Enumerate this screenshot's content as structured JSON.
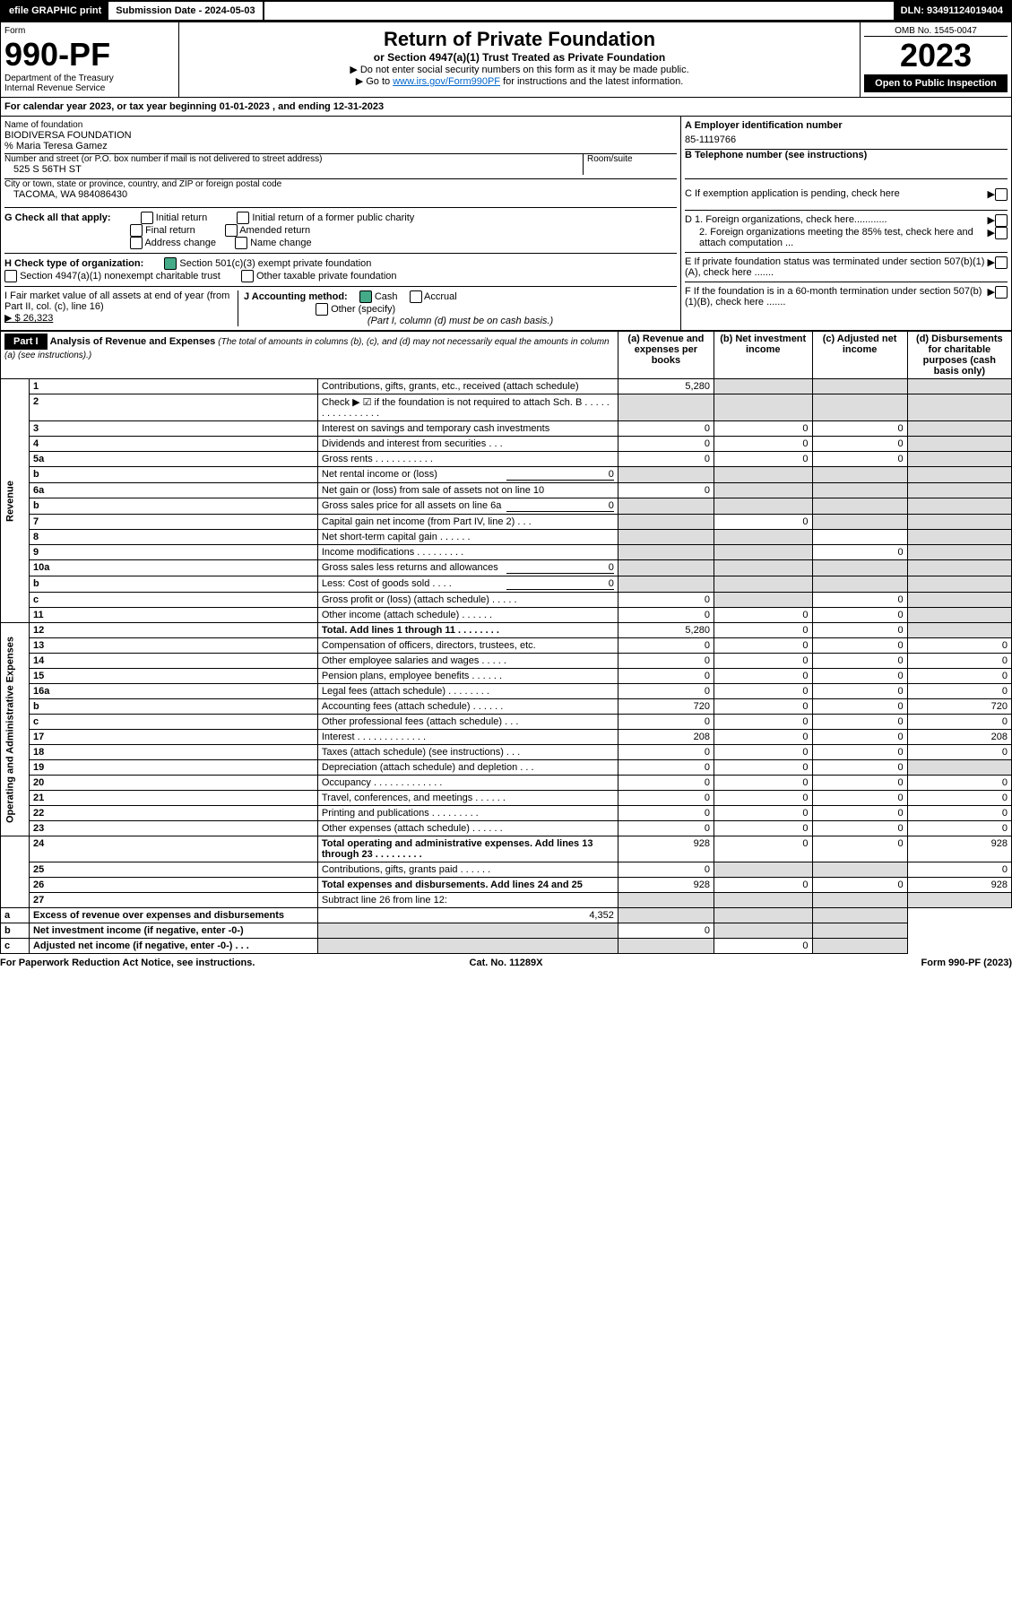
{
  "topbar": {
    "efile": "efile GRAPHIC print",
    "subdate_label": "Submission Date - 2024-05-03",
    "dln": "DLN: 93491124019404"
  },
  "hdr": {
    "form": "Form",
    "formno": "990-PF",
    "dept": "Department of the Treasury",
    "irs": "Internal Revenue Service",
    "title": "Return of Private Foundation",
    "sub": "or Section 4947(a)(1) Trust Treated as Private Foundation",
    "b1": "▶ Do not enter social security numbers on this form as it may be made public.",
    "b2": "▶ Go to ",
    "b2link": "www.irs.gov/Form990PF",
    "b2end": " for instructions and the latest information.",
    "omb": "OMB No. 1545-0047",
    "year": "2023",
    "open": "Open to Public Inspection"
  },
  "cal": "For calendar year 2023, or tax year beginning 01-01-2023          , and ending 12-31-2023",
  "name": {
    "label": "Name of foundation",
    "foundation": "BIODIVERSA FOUNDATION",
    "co": "% Maria Teresa Gamez",
    "addr_label": "Number and street (or P.O. box number if mail is not delivered to street address)",
    "room": "Room/suite",
    "addr": "525 S 56TH ST",
    "city_label": "City or town, state or province, country, and ZIP or foreign postal code",
    "city": "TACOMA, WA  984086430",
    "A": "A Employer identification number",
    "ein": "85-1119766",
    "B": "B Telephone number (see instructions)",
    "phone": "",
    "C": "C If exemption application is pending, check here",
    "D1": "D 1. Foreign organizations, check here............",
    "D2": "2. Foreign organizations meeting the 85% test, check here and attach computation ...",
    "E": "E  If private foundation status was terminated under section 507(b)(1)(A), check here .......",
    "F": "F  If the foundation is in a 60-month termination under section 507(b)(1)(B), check here .......",
    "G": "G Check all that apply:",
    "G1": "Initial return",
    "G2": "Initial return of a former public charity",
    "G3": "Final return",
    "G4": "Amended return",
    "G5": "Address change",
    "G6": "Name change",
    "H": "H Check type of organization:",
    "H1": "Section 501(c)(3) exempt private foundation",
    "H2": "Section 4947(a)(1) nonexempt charitable trust",
    "H3": "Other taxable private foundation",
    "I": "I Fair market value of all assets at end of year (from Part II, col. (c), line 16)",
    "Ival": "▶ $  26,323",
    "J": "J Accounting method:",
    "J1": "Cash",
    "J2": "Accrual",
    "J3": "Other (specify)",
    "Jnote": "(Part I, column (d) must be on cash basis.)"
  },
  "part1": {
    "label": "Part I",
    "title": "Analysis of Revenue and Expenses",
    "titlesub": "(The total of amounts in columns (b), (c), and (d) may not necessarily equal the amounts in column (a) (see instructions).)",
    "ha": "(a)   Revenue and expenses per books",
    "hb": "(b)   Net investment income",
    "hc": "(c)   Adjusted net income",
    "hd": "(d)  Disbursements for charitable purposes (cash basis only)",
    "side_rev": "Revenue",
    "side_exp": "Operating and Administrative Expenses"
  },
  "lines": [
    {
      "n": "1",
      "d": "Contributions, gifts, grants, etc., received (attach schedule)",
      "a": "5,280",
      "b_s": 1,
      "c_s": 1,
      "dd_s": 1
    },
    {
      "n": "2",
      "d": "Check ▶ ☑ if the foundation is not required to attach Sch. B   .  .  .  .  .  .  .  .  .  .  .  .  .  .  .  .",
      "a_s": 1,
      "b_s": 1,
      "c_s": 1,
      "dd_s": 1
    },
    {
      "n": "3",
      "d": "Interest on savings and temporary cash investments",
      "a": "0",
      "b": "0",
      "c": "0",
      "dd_s": 1
    },
    {
      "n": "4",
      "d": "Dividends and interest from securities   .   .   .",
      "a": "0",
      "b": "0",
      "c": "0",
      "dd_s": 1
    },
    {
      "n": "5a",
      "d": "Gross rents   .   .   .   .   .   .   .   .   .   .   .",
      "a": "0",
      "b": "0",
      "c": "0",
      "dd_s": 1
    },
    {
      "n": "b",
      "d": "Net rental income or (loss)",
      "inline": "0",
      "a_s": 1,
      "b_s": 1,
      "c_s": 1,
      "dd_s": 1
    },
    {
      "n": "6a",
      "d": "Net gain or (loss) from sale of assets not on line 10",
      "a": "0",
      "b_s": 1,
      "c_s": 1,
      "dd_s": 1
    },
    {
      "n": "b",
      "d": "Gross sales price for all assets on line 6a",
      "inline": "0",
      "a_s": 1,
      "b_s": 1,
      "c_s": 1,
      "dd_s": 1
    },
    {
      "n": "7",
      "d": "Capital gain net income (from Part IV, line 2)   .   .   .",
      "a_s": 1,
      "b": "0",
      "c_s": 1,
      "dd_s": 1
    },
    {
      "n": "8",
      "d": "Net short-term capital gain   .   .   .   .   .   .",
      "a_s": 1,
      "b_s": 1,
      "c": "",
      "dd_s": 1
    },
    {
      "n": "9",
      "d": "Income modifications  .   .   .   .   .   .   .   .   .",
      "a_s": 1,
      "b_s": 1,
      "c": "0",
      "dd_s": 1
    },
    {
      "n": "10a",
      "d": "Gross sales less returns and allowances",
      "inline": "0",
      "a_s": 1,
      "b_s": 1,
      "c_s": 1,
      "dd_s": 1
    },
    {
      "n": "b",
      "d": "Less: Cost of goods sold   .   .   .   .",
      "inline": "0",
      "a_s": 1,
      "b_s": 1,
      "c_s": 1,
      "dd_s": 1
    },
    {
      "n": "c",
      "d": "Gross profit or (loss) (attach schedule)   .   .   .   .   .",
      "a": "0",
      "b_s": 1,
      "c": "0",
      "dd_s": 1
    },
    {
      "n": "11",
      "d": "Other income (attach schedule)   .   .   .   .   .   .",
      "a": "0",
      "b": "0",
      "c": "0",
      "dd_s": 1
    },
    {
      "n": "12",
      "d": "Total. Add lines 1 through 11   .   .   .   .   .   .   .   .",
      "bold": 1,
      "a": "5,280",
      "b": "0",
      "c": "0",
      "dd_s": 1
    },
    {
      "n": "13",
      "d": "Compensation of officers, directors, trustees, etc.",
      "a": "0",
      "b": "0",
      "c": "0",
      "dd": "0",
      "sec": "exp"
    },
    {
      "n": "14",
      "d": "Other employee salaries and wages   .   .   .   .   .",
      "a": "0",
      "b": "0",
      "c": "0",
      "dd": "0"
    },
    {
      "n": "15",
      "d": "Pension plans, employee benefits  .   .   .   .   .   .",
      "a": "0",
      "b": "0",
      "c": "0",
      "dd": "0"
    },
    {
      "n": "16a",
      "d": "Legal fees (attach schedule)  .   .   .   .   .   .   .   .",
      "a": "0",
      "b": "0",
      "c": "0",
      "dd": "0"
    },
    {
      "n": "b",
      "d": "Accounting fees (attach schedule)  .   .   .   .   .   .",
      "a": "720",
      "b": "0",
      "c": "0",
      "dd": "720"
    },
    {
      "n": "c",
      "d": "Other professional fees (attach schedule)   .   .   .",
      "a": "0",
      "b": "0",
      "c": "0",
      "dd": "0"
    },
    {
      "n": "17",
      "d": "Interest  .   .   .   .   .   .   .   .   .   .   .   .   .",
      "a": "208",
      "b": "0",
      "c": "0",
      "dd": "208"
    },
    {
      "n": "18",
      "d": "Taxes (attach schedule) (see instructions)   .   .   .",
      "a": "0",
      "b": "0",
      "c": "0",
      "dd": "0"
    },
    {
      "n": "19",
      "d": "Depreciation (attach schedule) and depletion   .   .   .",
      "a": "0",
      "b": "0",
      "c": "0",
      "dd_s": 1
    },
    {
      "n": "20",
      "d": "Occupancy  .   .   .   .   .   .   .   .   .   .   .   .   .",
      "a": "0",
      "b": "0",
      "c": "0",
      "dd": "0"
    },
    {
      "n": "21",
      "d": "Travel, conferences, and meetings  .   .   .   .   .   .",
      "a": "0",
      "b": "0",
      "c": "0",
      "dd": "0"
    },
    {
      "n": "22",
      "d": "Printing and publications  .   .   .   .   .   .   .   .   .",
      "a": "0",
      "b": "0",
      "c": "0",
      "dd": "0"
    },
    {
      "n": "23",
      "d": "Other expenses (attach schedule)  .   .   .   .   .   .",
      "a": "0",
      "b": "0",
      "c": "0",
      "dd": "0"
    },
    {
      "n": "24",
      "d": "Total operating and administrative expenses. Add lines 13 through 23   .   .   .   .   .   .   .   .   .",
      "bold": 1,
      "a": "928",
      "b": "0",
      "c": "0",
      "dd": "928"
    },
    {
      "n": "25",
      "d": "Contributions, gifts, grants paid   .   .   .   .   .   .",
      "a": "0",
      "b_s": 1,
      "c_s": 1,
      "dd": "0"
    },
    {
      "n": "26",
      "d": "Total expenses and disbursements. Add lines 24 and 25",
      "bold": 1,
      "a": "928",
      "b": "0",
      "c": "0",
      "dd": "928"
    },
    {
      "n": "27",
      "d": "Subtract line 26 from line 12:",
      "a_s": 1,
      "b_s": 1,
      "c_s": 1,
      "dd_s": 1,
      "sec": "end"
    },
    {
      "n": "a",
      "d": "Excess of revenue over expenses and disbursements",
      "bold": 1,
      "a": "4,352",
      "b_s": 1,
      "c_s": 1,
      "dd_s": 1
    },
    {
      "n": "b",
      "d": "Net investment income (if negative, enter -0-)",
      "bold": 1,
      "a_s": 1,
      "b": "0",
      "c_s": 1,
      "dd_s": 1
    },
    {
      "n": "c",
      "d": "Adjusted net income (if negative, enter -0-)   .   .   .",
      "bold": 1,
      "a_s": 1,
      "b_s": 1,
      "c": "0",
      "dd_s": 1
    }
  ],
  "ftr": {
    "l": "For Paperwork Reduction Act Notice, see instructions.",
    "m": "Cat. No. 11289X",
    "r": "Form 990-PF (2023)"
  }
}
